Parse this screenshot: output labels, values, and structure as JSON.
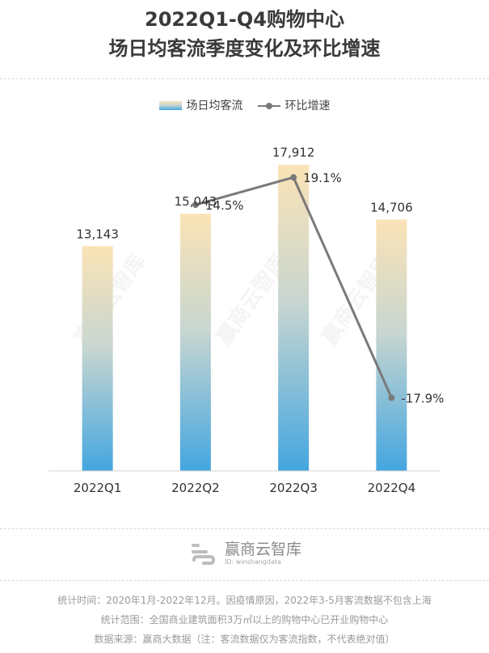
{
  "header": {
    "title_line1": "2022Q1-Q4购物中心",
    "title_line2": "场日均客流季度变化及环比增速"
  },
  "chart_data": {
    "type": "bar",
    "categories": [
      "2022Q1",
      "2022Q2",
      "2022Q3",
      "2022Q4"
    ],
    "series": [
      {
        "name": "场日均客流",
        "type": "bar",
        "values": [
          13143,
          15043,
          17912,
          14706
        ],
        "labels": [
          "13,143",
          "15,043",
          "17,912",
          "14,706"
        ]
      },
      {
        "name": "环比增速",
        "type": "line",
        "values": [
          null,
          14.5,
          19.1,
          -17.9
        ],
        "labels": [
          "",
          "14.5%",
          "19.1%",
          "-17.9%"
        ]
      }
    ],
    "ylim": [
      0,
      19000
    ],
    "line_ylim": [
      -20,
      25
    ],
    "legend_position": "top-center",
    "colors": {
      "bar_top": "#fbe3b6",
      "bar_mid": "#c8d6d0",
      "bar_bottom": "#44a6e0",
      "line": "#7a7a7a"
    }
  },
  "watermark": {
    "text": "赢商云智库"
  },
  "brand": {
    "name": "赢商云智库",
    "id": "ID: winshangdata"
  },
  "footer": {
    "line1": "统计时间：2020年1月-2022年12月。因疫情原因，2022年3-5月客流数据不包含上海",
    "line2": "统计范围：全国商业建筑面积3万㎡以上的购物中心已开业购物中心",
    "line3": "数据来源：赢商大数据（注：客流数据仅为客流指数，不代表绝对值）"
  }
}
